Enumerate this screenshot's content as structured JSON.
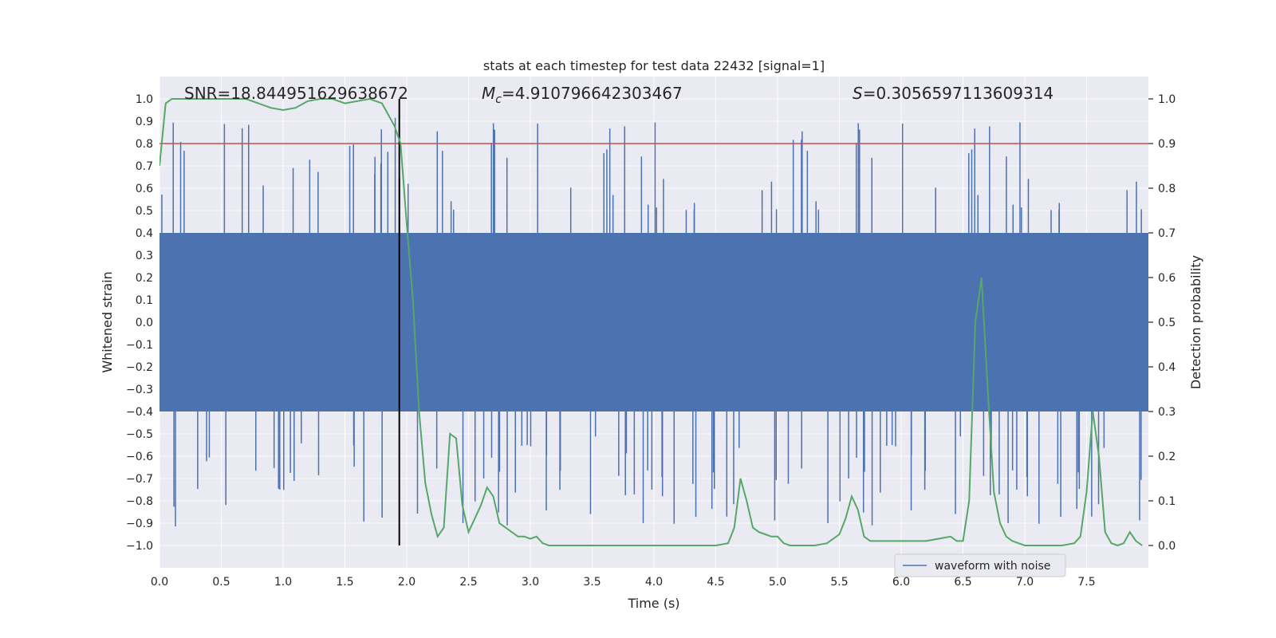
{
  "chart_data": {
    "type": "line",
    "title": "stats at each timestep for test data 22432 [signal=1]",
    "xlabel": "Time (s)",
    "ylabel": "Whitened strain",
    "y2label": "Detection probability",
    "xlim": [
      0.0,
      8.0
    ],
    "ylim": [
      -1.1,
      1.1
    ],
    "y2lim": [
      -0.05,
      1.05
    ],
    "xticks": [
      "0.0",
      "0.5",
      "1.0",
      "1.5",
      "2.0",
      "2.5",
      "3.0",
      "3.5",
      "4.0",
      "4.5",
      "5.0",
      "5.5",
      "6.0",
      "6.5",
      "7.0",
      "7.5"
    ],
    "yticks": [
      "1.0",
      "0.9",
      "0.8",
      "0.7",
      "0.6",
      "0.5",
      "0.4",
      "0.3",
      "0.2",
      "0.1",
      "0.0",
      "-0.1",
      "-0.2",
      "-0.3",
      "-0.4",
      "-0.5",
      "-0.6",
      "-0.7",
      "-0.8",
      "-0.9",
      "-1.0"
    ],
    "y2ticks": [
      "1.0",
      "0.9",
      "0.8",
      "0.7",
      "0.6",
      "0.5",
      "0.4",
      "0.3",
      "0.2",
      "0.1",
      "0.0"
    ],
    "grid": true,
    "legend_position": "lower-right",
    "annotations": {
      "snr": "SNR=18.844951629638672",
      "mc_symbol": "M",
      "mc_sub": "c",
      "mc_value": "=4.910796642303467",
      "s_symbol": "S",
      "s_value": "=0.3056597113609314"
    },
    "threshold": {
      "y2": 0.9,
      "color": "#c44e52"
    },
    "marker_line": {
      "x": 1.94,
      "color": "#000000"
    },
    "series": [
      {
        "name": "waveform with noise",
        "axis": "left",
        "color": "#4c72b0",
        "description_values": "dense noise",
        "x_range": [
          0.0,
          8.0
        ],
        "typical_amplitude": 0.45,
        "max": 1.0,
        "min": -1.0
      },
      {
        "axis": "right",
        "color": "#55a868",
        "x": [
          0.0,
          0.05,
          0.1,
          0.2,
          0.3,
          0.4,
          0.5,
          0.6,
          0.7,
          0.8,
          0.9,
          1.0,
          1.1,
          1.2,
          1.3,
          1.4,
          1.5,
          1.6,
          1.7,
          1.8,
          1.9,
          1.95,
          2.0,
          2.05,
          2.1,
          2.15,
          2.2,
          2.25,
          2.3,
          2.35,
          2.4,
          2.45,
          2.5,
          2.55,
          2.6,
          2.65,
          2.7,
          2.75,
          2.8,
          2.85,
          2.9,
          2.95,
          3.0,
          3.05,
          3.1,
          3.15,
          3.2,
          3.3,
          3.4,
          3.5,
          3.6,
          3.7,
          3.8,
          3.9,
          4.0,
          4.1,
          4.2,
          4.3,
          4.4,
          4.5,
          4.6,
          4.65,
          4.7,
          4.75,
          4.8,
          4.85,
          4.9,
          4.95,
          5.0,
          5.05,
          5.1,
          5.15,
          5.2,
          5.3,
          5.4,
          5.5,
          5.55,
          5.6,
          5.65,
          5.7,
          5.75,
          5.8,
          5.85,
          5.9,
          6.0,
          6.1,
          6.2,
          6.3,
          6.4,
          6.45,
          6.5,
          6.55,
          6.6,
          6.65,
          6.7,
          6.75,
          6.8,
          6.85,
          6.9,
          6.95,
          7.0,
          7.1,
          7.2,
          7.3,
          7.4,
          7.45,
          7.5,
          7.55,
          7.6,
          7.65,
          7.7,
          7.75,
          7.8,
          7.85,
          7.9,
          7.95
        ],
        "y": [
          0.85,
          0.99,
          1.0,
          1.0,
          1.0,
          1.0,
          1.0,
          1.0,
          1.0,
          0.99,
          0.98,
          0.975,
          0.98,
          0.995,
          1.0,
          1.0,
          0.99,
          0.995,
          1.0,
          0.99,
          0.94,
          0.9,
          0.72,
          0.55,
          0.3,
          0.14,
          0.07,
          0.02,
          0.04,
          0.25,
          0.24,
          0.09,
          0.03,
          0.06,
          0.09,
          0.13,
          0.11,
          0.05,
          0.04,
          0.03,
          0.02,
          0.02,
          0.015,
          0.02,
          0.005,
          0.0,
          0.0,
          0.0,
          0.0,
          0.0,
          0.0,
          0.0,
          0.0,
          0.0,
          0.0,
          0.0,
          0.0,
          0.0,
          0.0,
          0.0,
          0.005,
          0.04,
          0.15,
          0.1,
          0.04,
          0.03,
          0.025,
          0.02,
          0.02,
          0.005,
          0.0,
          0.0,
          0.0,
          0.0,
          0.005,
          0.025,
          0.06,
          0.11,
          0.08,
          0.02,
          0.01,
          0.01,
          0.01,
          0.01,
          0.01,
          0.01,
          0.01,
          0.015,
          0.02,
          0.01,
          0.01,
          0.1,
          0.5,
          0.6,
          0.35,
          0.12,
          0.05,
          0.02,
          0.01,
          0.005,
          0.0,
          0.0,
          0.0,
          0.0,
          0.005,
          0.02,
          0.12,
          0.3,
          0.2,
          0.03,
          0.005,
          0.0,
          0.005,
          0.03,
          0.01,
          0.0
        ]
      }
    ]
  }
}
